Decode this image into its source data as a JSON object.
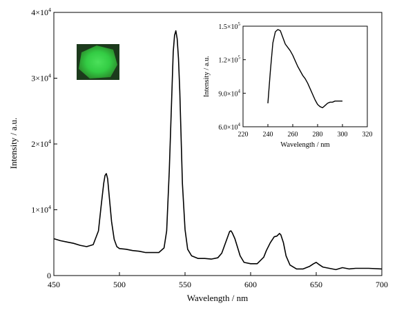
{
  "chart_data": [
    {
      "type": "line",
      "xlabel": "Wavelength / nm",
      "ylabel": "Intensity / a.u.",
      "xlim": [
        450,
        700
      ],
      "ylim": [
        0,
        40000
      ],
      "x_ticks": [
        450,
        500,
        550,
        600,
        650,
        700
      ],
      "x_tick_labels": [
        "450",
        "500",
        "550",
        "600",
        "650",
        "700"
      ],
      "y_ticks": [
        0,
        10000,
        20000,
        30000,
        40000
      ],
      "y_tick_labels": [
        {
          "base": "0",
          "exp": ""
        },
        {
          "base": "1×10",
          "exp": "4"
        },
        {
          "base": "2×10",
          "exp": "4"
        },
        {
          "base": "3×10",
          "exp": "4"
        },
        {
          "base": "4×10",
          "exp": "4"
        }
      ],
      "grid": false,
      "legend": "none",
      "line_color": "#000000",
      "series": [
        {
          "x": [
            450,
            455,
            460,
            465,
            470,
            475,
            480,
            484,
            486,
            488,
            489,
            490,
            491,
            492,
            494,
            496,
            498,
            500,
            505,
            510,
            515,
            520,
            525,
            530,
            534,
            536,
            538,
            540,
            541,
            542,
            543,
            544,
            545,
            546,
            547,
            548,
            550,
            552,
            555,
            560,
            565,
            570,
            575,
            578,
            580,
            582,
            584,
            585,
            586,
            588,
            590,
            592,
            595,
            600,
            605,
            610,
            612,
            615,
            618,
            620,
            622,
            623,
            625,
            627,
            630,
            635,
            640,
            645,
            648,
            650,
            652,
            655,
            660,
            665,
            670,
            675,
            680,
            690,
            700
          ],
          "y": [
            5600,
            5300,
            5100,
            4900,
            4600,
            4400,
            4700,
            6800,
            10500,
            14000,
            15200,
            15500,
            14700,
            12500,
            8200,
            5500,
            4400,
            4100,
            4000,
            3800,
            3700,
            3500,
            3500,
            3500,
            4200,
            6800,
            16000,
            28000,
            34000,
            36500,
            37200,
            36000,
            33000,
            28000,
            21000,
            14000,
            7000,
            4000,
            3000,
            2600,
            2600,
            2500,
            2700,
            3400,
            4500,
            5600,
            6700,
            6800,
            6500,
            5600,
            4300,
            3000,
            2000,
            1800,
            1800,
            2800,
            3800,
            5000,
            5900,
            6000,
            6400,
            6200,
            5000,
            3000,
            1600,
            1000,
            1000,
            1400,
            1800,
            2000,
            1700,
            1300,
            1100,
            900,
            1200,
            1000,
            1100,
            1100,
            1000
          ]
        }
      ]
    },
    {
      "type": "line",
      "xlabel": "Wavelength / nm",
      "ylabel": "Intensity / a.u.",
      "xlim": [
        220,
        320
      ],
      "ylim": [
        60000,
        150000
      ],
      "x_ticks": [
        220,
        240,
        260,
        280,
        300,
        320
      ],
      "x_tick_labels": [
        "220",
        "240",
        "260",
        "280",
        "300",
        "320"
      ],
      "y_ticks": [
        60000,
        90000,
        120000,
        150000
      ],
      "y_tick_labels": [
        {
          "base": "6.0×10",
          "exp": "4"
        },
        {
          "base": "9.0×10",
          "exp": "4"
        },
        {
          "base": "1.2×10",
          "exp": "5"
        },
        {
          "base": "1.5×10",
          "exp": "5"
        }
      ],
      "grid": false,
      "legend": "none",
      "line_color": "#000000",
      "series": [
        {
          "x": [
            240,
            242,
            244,
            246,
            248,
            250,
            252,
            254,
            256,
            258,
            260,
            262,
            264,
            266,
            268,
            270,
            272,
            274,
            276,
            278,
            280,
            282,
            284,
            286,
            288,
            290,
            292,
            294,
            296,
            298,
            300
          ],
          "y": [
            81000,
            110000,
            135000,
            145000,
            147000,
            146000,
            140000,
            134000,
            131000,
            128000,
            124000,
            119000,
            114000,
            110000,
            106000,
            103000,
            99000,
            94000,
            89000,
            84000,
            80000,
            78000,
            77000,
            79000,
            81000,
            82000,
            82000,
            83000,
            83000,
            83000,
            83000
          ]
        }
      ]
    }
  ],
  "photo_inset": {
    "colors": [
      "#1c3a1c",
      "#2a8a2a",
      "#33cc44",
      "#4be05a"
    ]
  }
}
